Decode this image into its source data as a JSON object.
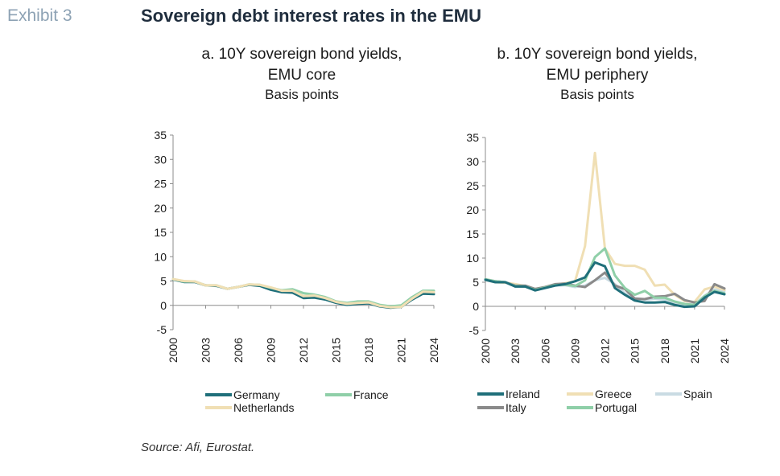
{
  "header": {
    "exhibit": "Exhibit 3",
    "title": "Sovereign debt interest rates in the EMU"
  },
  "source": "Source: Afi, Eurostat.",
  "chart_data": [
    {
      "type": "line",
      "title": "a. 10Y sovereign bond yields, EMU core",
      "title_lines": [
        "a. 10Y sovereign bond yields,",
        "EMU core"
      ],
      "subtitle": "Basis points",
      "ylim": [
        -5,
        35
      ],
      "yticks": [
        35,
        30,
        25,
        20,
        15,
        10,
        5,
        0,
        -5
      ],
      "xticks": [
        "2000",
        "2003",
        "2006",
        "2009",
        "2012",
        "2015",
        "2018",
        "2021",
        "2024"
      ],
      "xlim": [
        2000,
        2024
      ],
      "grid": false,
      "x": [
        2000,
        2001,
        2002,
        2003,
        2004,
        2005,
        2006,
        2007,
        2008,
        2009,
        2010,
        2011,
        2012,
        2013,
        2014,
        2015,
        2016,
        2017,
        2018,
        2019,
        2020,
        2021,
        2022,
        2023,
        2024
      ],
      "legend_rows": [
        [
          "Germany",
          "France"
        ],
        [
          "Netherlands"
        ]
      ],
      "series": [
        {
          "name": "Germany",
          "color": "#1f6f7a",
          "values": [
            5.3,
            4.8,
            4.8,
            4.1,
            4.0,
            3.4,
            3.8,
            4.2,
            4.0,
            3.2,
            2.7,
            2.6,
            1.5,
            1.6,
            1.2,
            0.5,
            0.1,
            0.3,
            0.4,
            -0.2,
            -0.5,
            -0.3,
            1.2,
            2.4,
            2.3
          ]
        },
        {
          "name": "France",
          "color": "#8fcfa8",
          "values": [
            5.4,
            4.9,
            4.9,
            4.1,
            4.1,
            3.4,
            3.8,
            4.3,
            4.2,
            3.6,
            3.1,
            3.3,
            2.5,
            2.2,
            1.7,
            0.8,
            0.5,
            0.8,
            0.8,
            0.1,
            -0.2,
            0.0,
            1.7,
            3.0,
            3.0
          ]
        },
        {
          "name": "Netherlands",
          "color": "#f0dfb4",
          "values": [
            5.4,
            5.0,
            4.9,
            4.1,
            4.1,
            3.4,
            3.8,
            4.3,
            4.2,
            3.7,
            3.0,
            3.0,
            1.9,
            2.0,
            1.5,
            0.7,
            0.3,
            0.5,
            0.6,
            -0.1,
            -0.4,
            -0.3,
            1.4,
            2.8,
            2.7
          ]
        }
      ]
    },
    {
      "type": "line",
      "title": "b. 10Y sovereign bond yields, EMU periphery",
      "title_lines": [
        "b. 10Y sovereign bond yields,",
        "EMU periphery"
      ],
      "subtitle": "Basis points",
      "ylim": [
        -5,
        35
      ],
      "yticks": [
        35,
        30,
        25,
        20,
        15,
        10,
        5,
        0,
        -5
      ],
      "xticks": [
        "2000",
        "2003",
        "2006",
        "2009",
        "2012",
        "2015",
        "2018",
        "2021",
        "2024"
      ],
      "xlim": [
        2000,
        2024
      ],
      "grid": false,
      "x": [
        2000,
        2001,
        2002,
        2003,
        2004,
        2005,
        2006,
        2007,
        2008,
        2009,
        2010,
        2011,
        2012,
        2013,
        2014,
        2015,
        2016,
        2017,
        2018,
        2019,
        2020,
        2021,
        2022,
        2023,
        2024
      ],
      "legend_rows": [
        [
          "Ireland",
          "Greece",
          "Spain"
        ],
        [
          "Italy",
          "Portugal"
        ]
      ],
      "series": [
        {
          "name": "Spain",
          "color": "#c9dbe3",
          "values": [
            5.5,
            5.1,
            5.0,
            4.1,
            4.1,
            3.4,
            3.8,
            4.3,
            4.4,
            4.0,
            4.3,
            5.4,
            5.9,
            4.6,
            2.7,
            1.7,
            1.4,
            1.6,
            1.4,
            0.7,
            0.4,
            0.4,
            2.2,
            3.5,
            3.2
          ]
        },
        {
          "name": "Greece",
          "color": "#f0dfb4",
          "values": [
            5.5,
            5.0,
            4.9,
            4.6,
            4.2,
            3.6,
            4.0,
            4.5,
            4.8,
            5.2,
            12.5,
            31.8,
            12.0,
            8.8,
            8.4,
            8.4,
            7.6,
            4.3,
            4.5,
            2.4,
            1.1,
            0.9,
            3.5,
            4.1,
            3.4
          ]
        },
        {
          "name": "Italy",
          "color": "#8a8a8a",
          "values": [
            5.6,
            5.2,
            5.0,
            4.3,
            4.3,
            3.6,
            4.0,
            4.6,
            4.7,
            4.3,
            4.0,
            5.4,
            7.0,
            4.3,
            3.6,
            1.6,
            1.5,
            2.0,
            2.1,
            2.6,
            1.3,
            0.8,
            1.1,
            4.6,
            3.7
          ]
        },
        {
          "name": "Portugal",
          "color": "#8fcfa8",
          "values": [
            5.6,
            5.2,
            5.0,
            4.2,
            4.1,
            3.4,
            3.9,
            4.4,
            4.5,
            4.2,
            5.4,
            10.2,
            12.0,
            6.4,
            3.8,
            2.4,
            3.2,
            1.8,
            1.8,
            1.0,
            0.5,
            0.3,
            2.1,
            3.2,
            2.7
          ]
        },
        {
          "name": "Ireland",
          "color": "#1f6f7a",
          "values": [
            5.5,
            5.0,
            5.0,
            4.1,
            4.1,
            3.3,
            3.8,
            4.3,
            4.6,
            5.2,
            6.0,
            9.1,
            8.3,
            3.8,
            2.4,
            1.2,
            0.8,
            0.8,
            0.9,
            0.3,
            -0.1,
            0.0,
            1.8,
            3.0,
            2.5
          ]
        }
      ]
    }
  ]
}
